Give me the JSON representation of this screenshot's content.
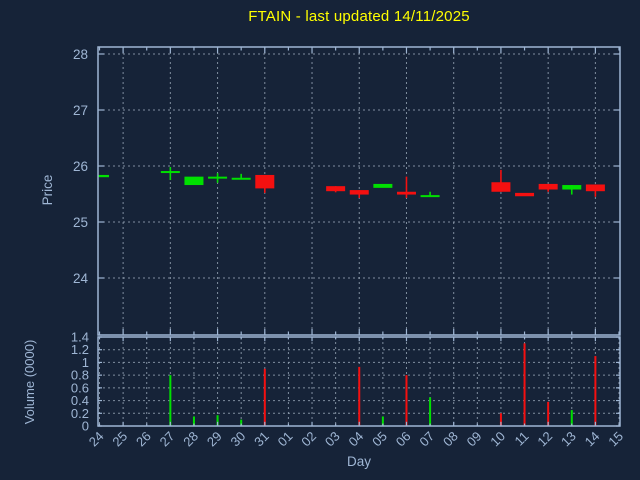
{
  "title": "FTAIN - last updated 14/11/2025",
  "colors": {
    "background": "#162338",
    "title": "#ffff00",
    "axis": "#9fb6d4",
    "tick_label": "#9fb6d4",
    "grid": "#93a1b2",
    "up": "#00e000",
    "down": "#f51010"
  },
  "chart_data": [
    {
      "type": "candlestick",
      "title": "FTAIN - last updated 14/11/2025",
      "xlabel": "Day",
      "ylabel": "Price",
      "ylim": [
        23.0,
        28.1
      ],
      "yticks": [
        24,
        25,
        26,
        27,
        28
      ],
      "grid": "dashed, horizontal at integer prices, vertical every 2nd day",
      "categories": [
        "24",
        "25",
        "26",
        "27",
        "28",
        "29",
        "30",
        "31",
        "01",
        "02",
        "03",
        "04",
        "05",
        "06",
        "07",
        "08",
        "09",
        "10",
        "11",
        "12",
        "13",
        "14",
        "15"
      ],
      "ohlc": [
        {
          "day": "24",
          "open": 25.8,
          "high": 25.84,
          "low": 25.8,
          "close": 25.84
        },
        null,
        null,
        {
          "day": "27",
          "open": 25.88,
          "high": 25.98,
          "low": 25.75,
          "close": 25.91
        },
        {
          "day": "28",
          "open": 25.66,
          "high": 25.81,
          "low": 25.66,
          "close": 25.81
        },
        {
          "day": "29",
          "open": 25.79,
          "high": 25.87,
          "low": 25.7,
          "close": 25.81
        },
        {
          "day": "30",
          "open": 25.77,
          "high": 25.86,
          "low": 25.76,
          "close": 25.79
        },
        {
          "day": "31",
          "open": 25.84,
          "high": 25.84,
          "low": 25.52,
          "close": 25.6
        },
        null,
        null,
        {
          "day": "03",
          "open": 25.64,
          "high": 25.64,
          "low": 25.53,
          "close": 25.55
        },
        {
          "day": "04",
          "open": 25.57,
          "high": 25.57,
          "low": 25.43,
          "close": 25.49
        },
        {
          "day": "05",
          "open": 25.61,
          "high": 25.68,
          "low": 25.61,
          "close": 25.68
        },
        {
          "day": "06",
          "open": 25.54,
          "high": 25.81,
          "low": 25.43,
          "close": 25.49
        },
        {
          "day": "07",
          "open": 25.45,
          "high": 25.54,
          "low": 25.45,
          "close": 25.48
        },
        null,
        null,
        {
          "day": "10",
          "open": 25.71,
          "high": 25.93,
          "low": 25.54,
          "close": 25.54
        },
        {
          "day": "11",
          "open": 25.52,
          "high": 25.52,
          "low": 25.46,
          "close": 25.46
        },
        {
          "day": "12",
          "open": 25.68,
          "high": 25.68,
          "low": 25.54,
          "close": 25.58
        },
        {
          "day": "13",
          "open": 25.58,
          "high": 25.66,
          "low": 25.49,
          "close": 25.66
        },
        {
          "day": "14",
          "open": 25.67,
          "high": 25.67,
          "low": 25.45,
          "close": 25.55
        },
        null
      ]
    },
    {
      "type": "bar",
      "ylabel": "Volume (0000)",
      "xlabel": "Day",
      "ylim": [
        0,
        1.4
      ],
      "ytick_values": [
        0,
        0.2,
        0.4,
        0.6,
        0.8,
        1,
        1.2,
        1.4
      ],
      "ytick_labels": [
        "0",
        "0.2",
        "0.4",
        "0.6",
        "0.8",
        "1",
        "1.2",
        "1.4"
      ],
      "grid": "dashed, horizontal every 0.2, vertical every day",
      "categories": [
        "24",
        "25",
        "26",
        "27",
        "28",
        "29",
        "30",
        "31",
        "01",
        "02",
        "03",
        "04",
        "05",
        "06",
        "07",
        "08",
        "09",
        "10",
        "11",
        "12",
        "13",
        "14",
        "15"
      ],
      "values": [
        0,
        0,
        0,
        0.8,
        0.15,
        0.17,
        0.1,
        0.9,
        0,
        0,
        0,
        0.93,
        0.15,
        0.8,
        0.45,
        0,
        0,
        0.2,
        1.3,
        0.38,
        0.25,
        1.1,
        0
      ],
      "bar_color_rule": "green when close >= open, red when close < open"
    }
  ]
}
